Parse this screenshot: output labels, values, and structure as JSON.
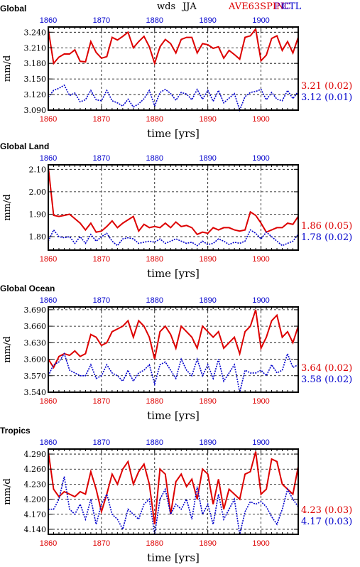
{
  "header": {
    "variable": "wds",
    "season": "JJA",
    "exp_label": "AVE63SPIN",
    "ctl_label": "CTL",
    "exp_color": "#dd0000",
    "ctl_color": "#0000cc",
    "overprint": "PIC"
  },
  "chart_data": [
    {
      "type": "line",
      "title": "Global",
      "xlabel": "time [yrs]",
      "ylabel": "mm/d",
      "xlim": [
        1860,
        1907
      ],
      "ylim": [
        3.09,
        3.25
      ],
      "xticks": [
        1860,
        1870,
        1880,
        1890,
        1900
      ],
      "yticks": [
        "3.090",
        "3.120",
        "3.150",
        "3.180",
        "3.210",
        "3.240"
      ],
      "grid": true,
      "x": [
        1860,
        1861,
        1862,
        1863,
        1864,
        1865,
        1866,
        1867,
        1868,
        1869,
        1870,
        1871,
        1872,
        1873,
        1874,
        1875,
        1876,
        1877,
        1878,
        1879,
        1880,
        1881,
        1882,
        1883,
        1884,
        1885,
        1886,
        1887,
        1888,
        1889,
        1890,
        1891,
        1892,
        1893,
        1894,
        1895,
        1896,
        1897,
        1898,
        1899,
        1900,
        1901,
        1902,
        1903,
        1904,
        1905,
        1906,
        1907
      ],
      "series": [
        {
          "name": "AVE63SPIN",
          "color": "#dd0000",
          "style": "solid",
          "values": [
            3.245,
            3.18,
            3.192,
            3.198,
            3.198,
            3.206,
            3.184,
            3.183,
            3.222,
            3.201,
            3.19,
            3.193,
            3.23,
            3.225,
            3.232,
            3.24,
            3.21,
            3.222,
            3.232,
            3.212,
            3.18,
            3.212,
            3.226,
            3.218,
            3.2,
            3.226,
            3.23,
            3.23,
            3.2,
            3.218,
            3.216,
            3.209,
            3.212,
            3.19,
            3.205,
            3.197,
            3.188,
            3.23,
            3.233,
            3.246,
            3.185,
            3.196,
            3.228,
            3.233,
            3.205,
            3.222,
            3.2,
            3.23
          ],
          "stat": "3.21 (0.02)"
        },
        {
          "name": "CTL",
          "color": "#0000cc",
          "style": "dotted",
          "values": [
            3.115,
            3.128,
            3.132,
            3.138,
            3.118,
            3.123,
            3.106,
            3.11,
            3.128,
            3.11,
            3.108,
            3.128,
            3.108,
            3.104,
            3.098,
            3.111,
            3.096,
            3.102,
            3.112,
            3.128,
            3.098,
            3.124,
            3.13,
            3.122,
            3.109,
            3.124,
            3.121,
            3.11,
            3.13,
            3.111,
            3.128,
            3.107,
            3.128,
            3.104,
            3.113,
            3.122,
            3.09,
            3.116,
            3.124,
            3.126,
            3.13,
            3.11,
            3.124,
            3.111,
            3.108,
            3.128,
            3.112,
            3.126
          ],
          "stat": "3.12 (0.01)"
        }
      ]
    },
    {
      "type": "line",
      "title": "Global Land",
      "xlabel": "time [yrs]",
      "ylabel": "mm/d",
      "xlim": [
        1860,
        1907
      ],
      "ylim": [
        1.74,
        2.12
      ],
      "xticks": [
        1860,
        1870,
        1880,
        1890,
        1900
      ],
      "yticks": [
        "1.80",
        "1.90",
        "2.00",
        "2.10"
      ],
      "grid": true,
      "x": [
        1860,
        1861,
        1862,
        1863,
        1864,
        1865,
        1866,
        1867,
        1868,
        1869,
        1870,
        1871,
        1872,
        1873,
        1874,
        1875,
        1876,
        1877,
        1878,
        1879,
        1880,
        1881,
        1882,
        1883,
        1884,
        1885,
        1886,
        1887,
        1888,
        1889,
        1890,
        1891,
        1892,
        1893,
        1894,
        1895,
        1896,
        1897,
        1898,
        1899,
        1900,
        1901,
        1902,
        1903,
        1904,
        1905,
        1906,
        1907
      ],
      "series": [
        {
          "name": "AVE63SPIN",
          "color": "#dd0000",
          "style": "solid",
          "values": [
            2.11,
            1.895,
            1.89,
            1.895,
            1.9,
            1.88,
            1.86,
            1.83,
            1.86,
            1.82,
            1.825,
            1.845,
            1.87,
            1.84,
            1.86,
            1.875,
            1.89,
            1.825,
            1.855,
            1.84,
            1.845,
            1.84,
            1.86,
            1.84,
            1.865,
            1.845,
            1.85,
            1.84,
            1.81,
            1.82,
            1.815,
            1.84,
            1.83,
            1.84,
            1.84,
            1.83,
            1.825,
            1.83,
            1.91,
            1.895,
            1.86,
            1.82,
            1.83,
            1.84,
            1.84,
            1.86,
            1.855,
            1.89
          ],
          "stat": "1.86 (0.05)"
        },
        {
          "name": "CTL",
          "color": "#0000cc",
          "style": "dotted",
          "values": [
            1.78,
            1.83,
            1.8,
            1.795,
            1.8,
            1.77,
            1.8,
            1.77,
            1.81,
            1.78,
            1.8,
            1.815,
            1.78,
            1.76,
            1.79,
            1.795,
            1.79,
            1.77,
            1.775,
            1.78,
            1.775,
            1.79,
            1.77,
            1.78,
            1.79,
            1.78,
            1.77,
            1.775,
            1.76,
            1.78,
            1.765,
            1.77,
            1.79,
            1.78,
            1.765,
            1.775,
            1.77,
            1.78,
            1.83,
            1.815,
            1.79,
            1.82,
            1.8,
            1.78,
            1.76,
            1.77,
            1.78,
            1.81
          ],
          "stat": "1.78 (0.02)"
        }
      ]
    },
    {
      "type": "line",
      "title": "Global Ocean",
      "xlabel": "time [yrs]",
      "ylabel": "mm/d",
      "xlim": [
        1860,
        1907
      ],
      "ylim": [
        3.54,
        3.695
      ],
      "xticks": [
        1860,
        1870,
        1880,
        1890,
        1900
      ],
      "yticks": [
        "3.540",
        "3.570",
        "3.600",
        "3.630",
        "3.660",
        "3.690"
      ],
      "grid": true,
      "x": [
        1860,
        1861,
        1862,
        1863,
        1864,
        1865,
        1866,
        1867,
        1868,
        1869,
        1870,
        1871,
        1872,
        1873,
        1874,
        1875,
        1876,
        1877,
        1878,
        1879,
        1880,
        1881,
        1882,
        1883,
        1884,
        1885,
        1886,
        1887,
        1888,
        1889,
        1890,
        1891,
        1892,
        1893,
        1894,
        1895,
        1896,
        1897,
        1898,
        1899,
        1900,
        1901,
        1902,
        1903,
        1904,
        1905,
        1906,
        1907
      ],
      "series": [
        {
          "name": "AVE63SPIN",
          "color": "#dd0000",
          "style": "solid",
          "values": [
            3.6,
            3.585,
            3.605,
            3.61,
            3.607,
            3.615,
            3.605,
            3.61,
            3.645,
            3.64,
            3.625,
            3.63,
            3.65,
            3.655,
            3.66,
            3.67,
            3.64,
            3.67,
            3.66,
            3.64,
            3.6,
            3.65,
            3.66,
            3.645,
            3.62,
            3.66,
            3.65,
            3.64,
            3.62,
            3.66,
            3.65,
            3.64,
            3.65,
            3.62,
            3.63,
            3.64,
            3.61,
            3.65,
            3.66,
            3.69,
            3.62,
            3.64,
            3.67,
            3.68,
            3.64,
            3.65,
            3.63,
            3.66
          ],
          "stat": "3.64 (0.02)"
        },
        {
          "name": "CTL",
          "color": "#0000cc",
          "style": "dotted",
          "values": [
            3.57,
            3.59,
            3.595,
            3.61,
            3.58,
            3.575,
            3.57,
            3.57,
            3.59,
            3.565,
            3.57,
            3.59,
            3.575,
            3.57,
            3.56,
            3.58,
            3.56,
            3.575,
            3.58,
            3.59,
            3.555,
            3.59,
            3.595,
            3.58,
            3.565,
            3.6,
            3.58,
            3.57,
            3.6,
            3.57,
            3.59,
            3.565,
            3.6,
            3.56,
            3.575,
            3.59,
            3.54,
            3.58,
            3.575,
            3.575,
            3.58,
            3.57,
            3.59,
            3.575,
            3.58,
            3.61,
            3.585,
            3.59
          ],
          "stat": "3.58 (0.02)"
        }
      ]
    },
    {
      "type": "line",
      "title": "Tropics",
      "xlabel": "time [yrs]",
      "ylabel": "mm/d",
      "xlim": [
        1860,
        1907
      ],
      "ylim": [
        4.13,
        4.3
      ],
      "xticks": [
        1860,
        1870,
        1880,
        1890,
        1900
      ],
      "yticks": [
        "4.140",
        "4.170",
        "4.200",
        "4.230",
        "4.260",
        "4.290"
      ],
      "grid": true,
      "x": [
        1860,
        1861,
        1862,
        1863,
        1864,
        1865,
        1866,
        1867,
        1868,
        1869,
        1870,
        1871,
        1872,
        1873,
        1874,
        1875,
        1876,
        1877,
        1878,
        1879,
        1880,
        1881,
        1882,
        1883,
        1884,
        1885,
        1886,
        1887,
        1888,
        1889,
        1890,
        1891,
        1892,
        1893,
        1894,
        1895,
        1896,
        1897,
        1898,
        1899,
        1900,
        1901,
        1902,
        1903,
        1904,
        1905,
        1906,
        1907
      ],
      "series": [
        {
          "name": "AVE63SPIN",
          "color": "#dd0000",
          "style": "solid",
          "values": [
            4.295,
            4.22,
            4.205,
            4.215,
            4.21,
            4.205,
            4.215,
            4.21,
            4.255,
            4.22,
            4.175,
            4.21,
            4.25,
            4.23,
            4.26,
            4.275,
            4.23,
            4.255,
            4.27,
            4.23,
            4.15,
            4.26,
            4.25,
            4.17,
            4.235,
            4.25,
            4.225,
            4.24,
            4.2,
            4.26,
            4.25,
            4.19,
            4.24,
            4.18,
            4.22,
            4.21,
            4.2,
            4.25,
            4.255,
            4.295,
            4.21,
            4.22,
            4.28,
            4.275,
            4.23,
            4.22,
            4.21,
            4.265
          ],
          "stat": "4.23 (0.03)"
        },
        {
          "name": "CTL",
          "color": "#0000cc",
          "style": "dotted",
          "values": [
            4.18,
            4.18,
            4.2,
            4.245,
            4.18,
            4.17,
            4.19,
            4.16,
            4.2,
            4.15,
            4.19,
            4.21,
            4.17,
            4.16,
            4.14,
            4.18,
            4.17,
            4.16,
            4.19,
            4.2,
            4.13,
            4.2,
            4.22,
            4.17,
            4.19,
            4.18,
            4.2,
            4.16,
            4.225,
            4.17,
            4.19,
            4.15,
            4.21,
            4.16,
            4.18,
            4.2,
            4.13,
            4.175,
            4.195,
            4.19,
            4.195,
            4.185,
            4.165,
            4.15,
            4.18,
            4.22,
            4.2,
            4.185
          ],
          "stat": "4.17 (0.03)"
        }
      ]
    }
  ]
}
